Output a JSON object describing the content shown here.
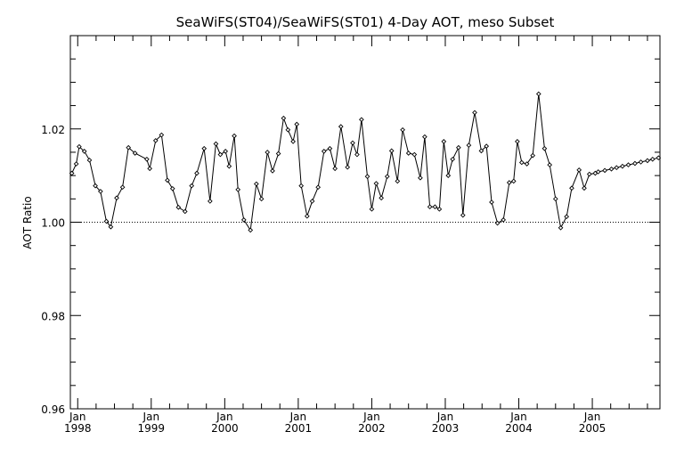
{
  "chart_data": {
    "type": "line",
    "title": "SeaWiFS(ST04)/SeaWiFS(ST01) 4-Day AOT, meso Subset",
    "xlabel": "",
    "ylabel": "AOT Ratio",
    "xlim": [
      1997.9,
      2005.92
    ],
    "ylim": [
      0.96,
      1.04
    ],
    "y_ticks": [
      0.96,
      0.98,
      1.0,
      1.02
    ],
    "y_tick_labels": [
      "0.96",
      "0.98",
      "1.00",
      "1.02"
    ],
    "x_ticks": [
      {
        "x": 1998,
        "month": "Jan",
        "year": "1998"
      },
      {
        "x": 1999,
        "month": "Jan",
        "year": "1999"
      },
      {
        "x": 2000,
        "month": "Jan",
        "year": "2000"
      },
      {
        "x": 2001,
        "month": "Jan",
        "year": "2001"
      },
      {
        "x": 2002,
        "month": "Jan",
        "year": "2002"
      },
      {
        "x": 2003,
        "month": "Jan",
        "year": "2003"
      },
      {
        "x": 2004,
        "month": "Jan",
        "year": "2004"
      },
      {
        "x": 2005,
        "month": "Jan",
        "year": "2005"
      }
    ],
    "reference_line": 1.0,
    "series": [
      {
        "marker": "diamond",
        "color": "#000000",
        "x": [
          1997.92,
          1997.98,
          1998.02,
          1998.09,
          1998.16,
          1998.24,
          1998.31,
          1998.39,
          1998.45,
          1998.53,
          1998.61,
          1998.69,
          1998.78,
          1998.94,
          1998.98,
          1999.06,
          1999.14,
          1999.22,
          1999.29,
          1999.37,
          1999.46,
          1999.55,
          1999.62,
          1999.72,
          1999.8,
          1999.88,
          1999.94,
          2000.01,
          2000.06,
          2000.13,
          2000.18,
          2000.26,
          2000.35,
          2000.43,
          2000.5,
          2000.58,
          2000.65,
          2000.73,
          2000.8,
          2000.86,
          2000.93,
          2000.98,
          2001.04,
          2001.12,
          2001.19,
          2001.27,
          2001.35,
          2001.43,
          2001.5,
          2001.58,
          2001.67,
          2001.74,
          2001.8,
          2001.86,
          2001.94,
          2002.0,
          2002.06,
          2002.13,
          2002.21,
          2002.27,
          2002.35,
          2002.42,
          2002.5,
          2002.58,
          2002.66,
          2002.72,
          2002.79,
          2002.86,
          2002.92,
          2002.98,
          2003.04,
          2003.1,
          2003.18,
          2003.24,
          2003.32,
          2003.4,
          2003.49,
          2003.56,
          2003.63,
          2003.71,
          2003.79,
          2003.87,
          2003.93,
          2003.98,
          2004.04,
          2004.11,
          2004.19,
          2004.27,
          2004.35,
          2004.42,
          2004.5,
          2004.57,
          2004.65,
          2004.72,
          2004.82,
          2004.89,
          2004.96,
          2005.04,
          2005.08,
          2005.17,
          2005.26,
          2005.33,
          2005.41,
          2005.49,
          2005.58,
          2005.66,
          2005.75,
          2005.82,
          2005.9
        ],
        "y": [
          1.0105,
          1.0125,
          1.0162,
          1.0152,
          1.0133,
          1.0078,
          1.0066,
          1.0002,
          0.999,
          1.0052,
          1.0075,
          1.016,
          1.0148,
          1.0135,
          1.0115,
          1.0175,
          1.0187,
          1.009,
          1.0072,
          1.0032,
          1.0023,
          1.0078,
          1.0105,
          1.0158,
          1.0045,
          1.0168,
          1.0145,
          1.0152,
          1.012,
          1.0185,
          1.007,
          1.0005,
          0.9983,
          1.0082,
          1.005,
          1.015,
          1.011,
          1.0147,
          1.0223,
          1.0198,
          1.0173,
          1.021,
          1.0078,
          1.0013,
          1.0045,
          1.0075,
          1.0152,
          1.0158,
          1.0115,
          1.0205,
          1.0118,
          1.017,
          1.0145,
          1.022,
          1.0098,
          1.0028,
          1.0083,
          1.0052,
          1.0098,
          1.0153,
          1.0088,
          1.0198,
          1.0148,
          1.0145,
          1.0095,
          1.0183,
          1.0033,
          1.0033,
          1.0028,
          1.0173,
          1.01,
          1.0135,
          1.016,
          1.0015,
          1.0165,
          1.0235,
          1.0153,
          1.0163,
          1.0043,
          0.9998,
          1.0005,
          1.0085,
          1.0088,
          1.0173,
          1.0128,
          1.0125,
          1.0143,
          1.0275,
          1.0158,
          1.0123,
          1.005,
          0.9988,
          1.0012,
          1.0073,
          1.0112,
          1.0073,
          1.0103,
          1.0105,
          1.0108,
          1.0111,
          1.0114,
          1.0117,
          1.012,
          1.0123,
          1.0126,
          1.0129,
          1.0132,
          1.0135,
          1.0138
        ]
      }
    ],
    "grid": false,
    "legend": "none"
  }
}
